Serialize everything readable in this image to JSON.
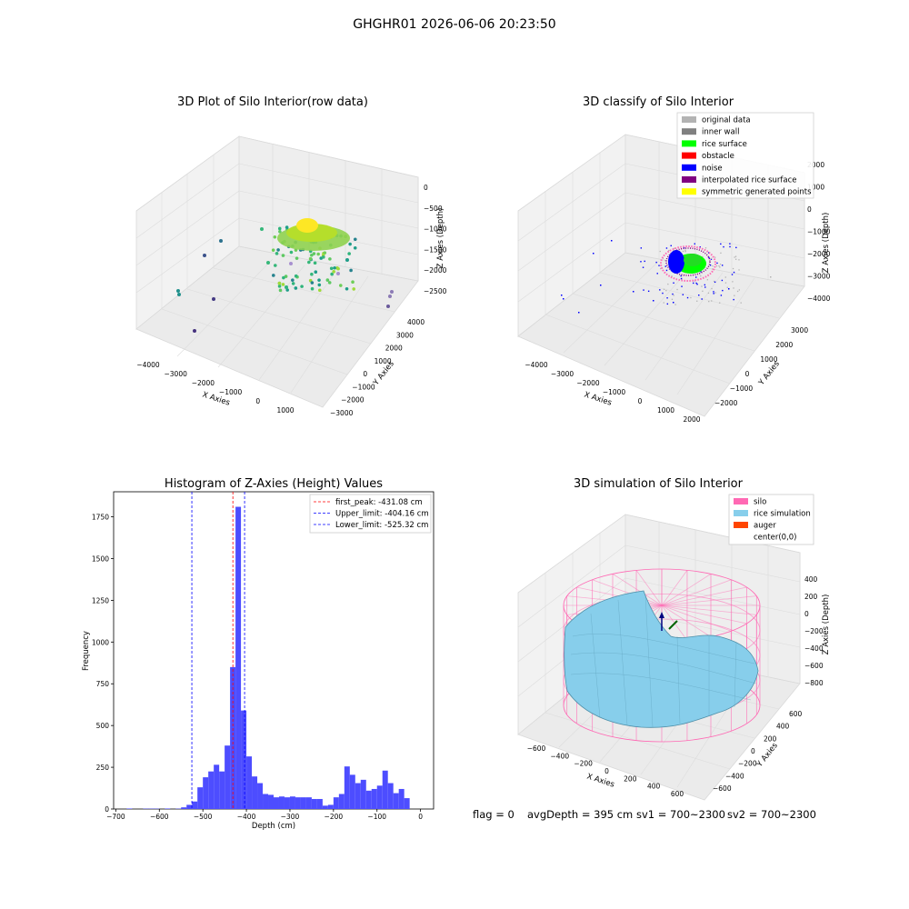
{
  "figure": {
    "suptitle": "GHGHR01 2026-06-06 20:23:50",
    "footer": {
      "flag": "flag = 0",
      "avg_depth": "avgDepth = 395 cm",
      "sv1": "sv1 = 700~2300",
      "sv2": "sv2 = 700~2300"
    }
  },
  "colors": {
    "original": "#b3b3b3",
    "inner_wall": "#808080",
    "rice_surface": "#00ff00",
    "obstacle": "#ff0000",
    "noise": "#0000ff",
    "interpolated": "#800080",
    "symmetric": "#ffff00",
    "silo": "#ff69b4",
    "rice_sim": "#87ceeb",
    "auger": "#ff4500",
    "hist_bar": "#4d4dff",
    "first_peak": "#ff0000",
    "limits": "#0000ff"
  },
  "chart_data": [
    {
      "type": "scatter",
      "title": "3D Plot of Silo Interior(row data)",
      "xlabel": "X Axies",
      "ylabel": "Y Axies",
      "zlabel": "Z Axies (Depth)",
      "x_ticks": [
        "−4000",
        "−3000",
        "−2000",
        "−1000",
        "0",
        "1000"
      ],
      "y_ticks": [
        "−3000",
        "−2000",
        "−1000",
        "0",
        "1000",
        "2000",
        "3000",
        "4000"
      ],
      "z_ticks": [
        "−2500",
        "−2000",
        "−1500",
        "−1000",
        "−500",
        "0"
      ]
    },
    {
      "type": "scatter",
      "title": "3D classify of Silo Interior",
      "xlabel": "X Axies",
      "ylabel": "Y Axies",
      "zlabel": "Z Axies (Depth)",
      "x_ticks": [
        "−4000",
        "−3000",
        "−2000",
        "−1000",
        "0",
        "1000",
        "2000"
      ],
      "y_ticks": [
        "−2000",
        "−1000",
        "0",
        "1000",
        "2000",
        "3000"
      ],
      "z_ticks": [
        "−4000",
        "−3000",
        "−2000",
        "−1000",
        "0",
        "1000",
        "2000"
      ],
      "legend": [
        "original data",
        "inner wall",
        "rice surface",
        "obstacle",
        "noise",
        "interpolated rice surface",
        "symmetric generated points"
      ],
      "legend_position": "top-right"
    },
    {
      "type": "bar",
      "title": "Histogram of Z-Axies (Height) Values",
      "xlabel": "Depth (cm)",
      "ylabel": "Frequency",
      "xlim": [
        -705,
        30
      ],
      "ylim": [
        0,
        1900
      ],
      "x_ticks": [
        "−700",
        "−600",
        "−500",
        "−400",
        "−300",
        "−200",
        "−100",
        "0"
      ],
      "y_ticks": [
        "0",
        "250",
        "500",
        "750",
        "1000",
        "1250",
        "1500",
        "1750"
      ],
      "bin_width": 12.5,
      "bin_start": -675,
      "values": [
        3,
        0,
        0,
        2,
        2,
        2,
        0,
        3,
        0,
        2,
        10,
        25,
        45,
        130,
        190,
        225,
        265,
        225,
        380,
        850,
        1810,
        590,
        315,
        195,
        155,
        90,
        85,
        70,
        75,
        70,
        75,
        70,
        70,
        70,
        60,
        60,
        20,
        25,
        70,
        90,
        255,
        205,
        155,
        175,
        110,
        120,
        140,
        230,
        155,
        95,
        120,
        65
      ],
      "annotations": [
        {
          "label": "first_peak: -431.08 cm",
          "x": -431.08,
          "style": "red dashed"
        },
        {
          "label": "Upper_limit: -404.16 cm",
          "x": -404.16,
          "style": "blue dashed"
        },
        {
          "label": "Lower_limit: -525.32 cm",
          "x": -525.32,
          "style": "blue dashed"
        }
      ],
      "legend_position": "top-right"
    },
    {
      "type": "area",
      "title": "3D simulation of Silo Interior",
      "xlabel": "X Axies",
      "ylabel": "Y Axies",
      "zlabel": "Z Axies (Depth)",
      "x_ticks": [
        "−600",
        "−400",
        "−200",
        "0",
        "200",
        "400",
        "600"
      ],
      "y_ticks": [
        "−600",
        "−400",
        "−200",
        "0",
        "200",
        "400",
        "600"
      ],
      "z_ticks": [
        "−800",
        "−600",
        "−400",
        "−200",
        "0",
        "200",
        "400"
      ],
      "legend": [
        "silo",
        "rice simulation",
        "auger",
        "center(0,0)"
      ],
      "legend_position": "top-right"
    }
  ]
}
